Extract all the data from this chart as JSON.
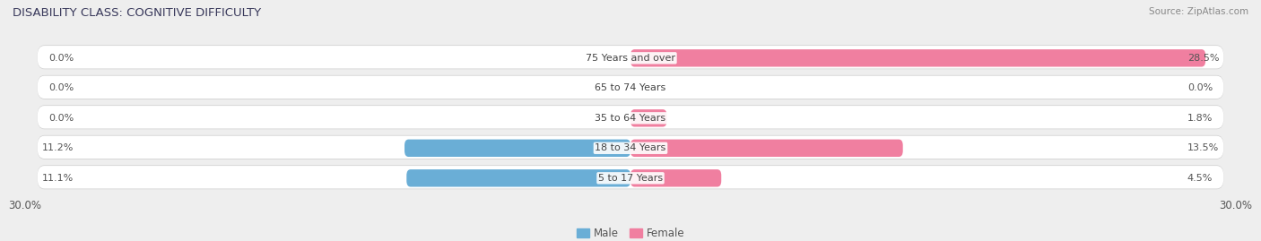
{
  "title": "DISABILITY CLASS: COGNITIVE DIFFICULTY",
  "source": "Source: ZipAtlas.com",
  "categories": [
    "5 to 17 Years",
    "18 to 34 Years",
    "35 to 64 Years",
    "65 to 74 Years",
    "75 Years and over"
  ],
  "male_values": [
    11.1,
    11.2,
    0.0,
    0.0,
    0.0
  ],
  "female_values": [
    4.5,
    13.5,
    1.8,
    0.0,
    28.5
  ],
  "male_color": "#6aaed6",
  "female_color": "#f07fa0",
  "male_label": "Male",
  "female_label": "Female",
  "xlim": 30.0,
  "x_left_label": "30.0%",
  "x_right_label": "30.0%",
  "bar_height": 0.62,
  "background_color": "#eeeeee",
  "row_bg_color": "#ffffff",
  "title_fontsize": 9.5,
  "label_fontsize": 8,
  "tick_fontsize": 8.5,
  "source_fontsize": 7.5
}
